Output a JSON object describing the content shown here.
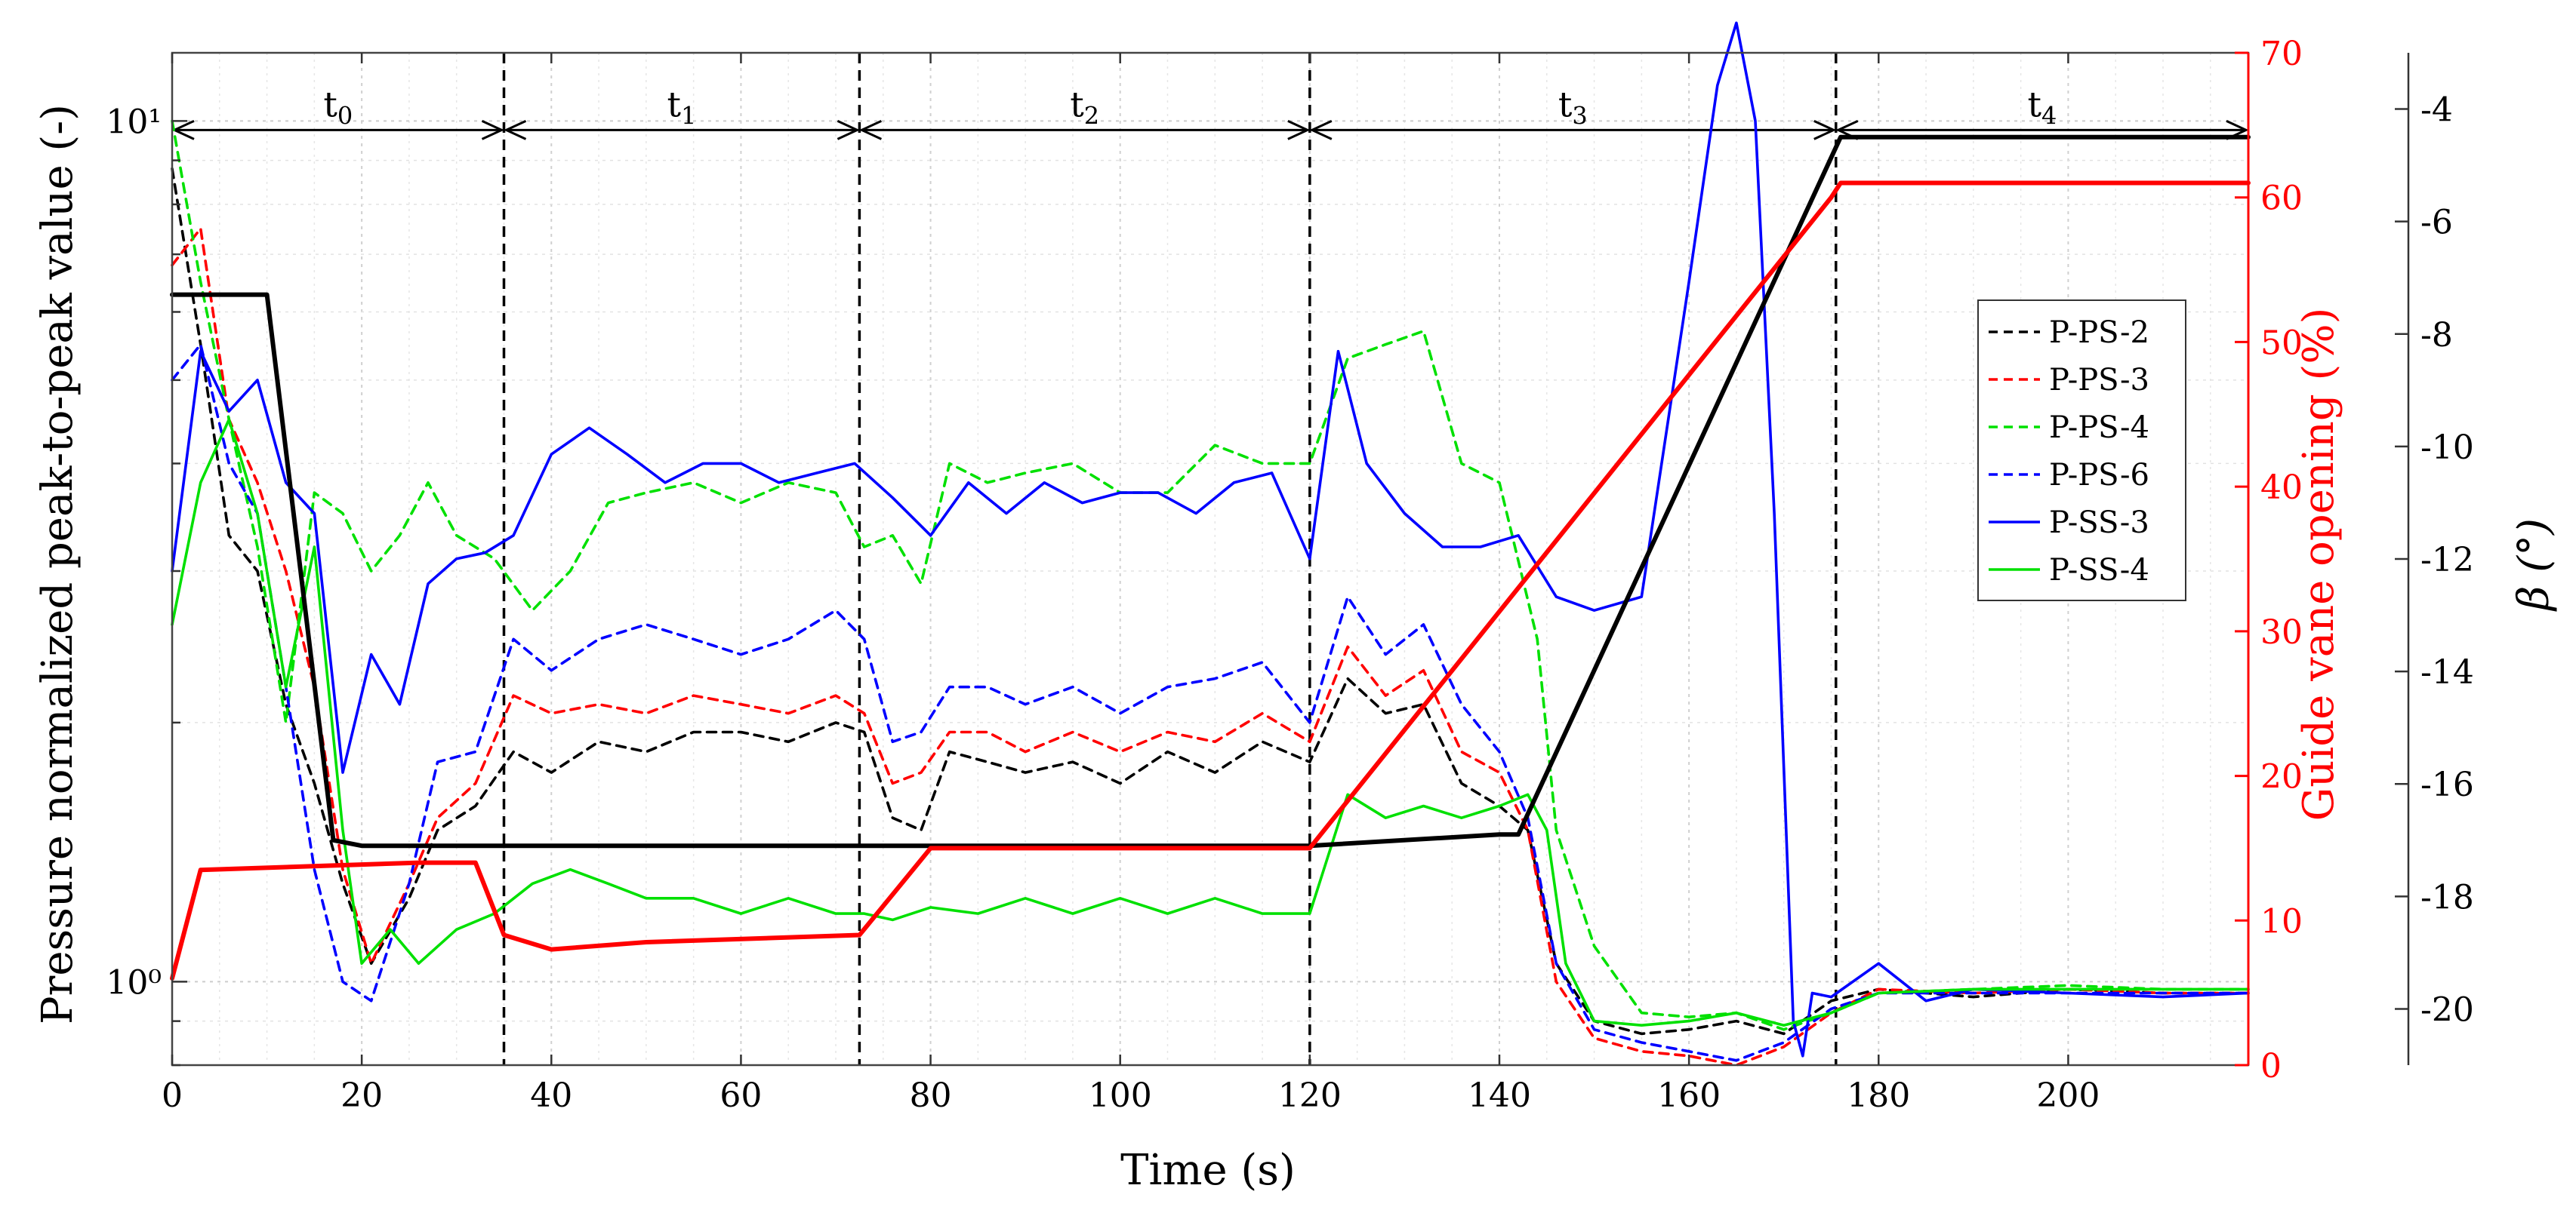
{
  "chart_data": {
    "type": "line",
    "xlabel": "Time (s)",
    "ylabel_left": "Pressure normalized peak-to-peak value (-)",
    "ylabel_right1": "Guide vane opening (%)",
    "ylabel_right2": "β (°)",
    "xlim": [
      0,
      219
    ],
    "ylim_left": [
      0.8,
      12
    ],
    "ylim_right1": [
      0,
      70
    ],
    "ylim_right2": [
      -21,
      -3
    ],
    "yscale_left": "log",
    "grid": true,
    "legend_position": "right",
    "x_ticks": [
      0,
      20,
      40,
      60,
      80,
      100,
      120,
      140,
      160,
      180,
      200
    ],
    "x_tick_labels": [
      "0",
      "20",
      "40",
      "60",
      "80",
      "100",
      "120",
      "140",
      "160",
      "180",
      "200"
    ],
    "y_left_tick_labels": [
      "10⁰",
      "10¹"
    ],
    "y_right1_ticks": [
      0,
      10,
      20,
      30,
      40,
      50,
      60,
      70
    ],
    "y_right1_tick_labels": [
      "0",
      "10",
      "20",
      "30",
      "40",
      "50",
      "60",
      "70"
    ],
    "y_right2_ticks": [
      -20,
      -18,
      -16,
      -14,
      -12,
      -10,
      -8,
      -6,
      -4
    ],
    "y_right2_tick_labels": [
      "-20",
      "-18",
      "-16",
      "-14",
      "-12",
      "-10",
      "-8",
      "-6",
      "-4"
    ],
    "periods": [
      {
        "label": "t",
        "sub": "0",
        "start": 0,
        "end": 35
      },
      {
        "label": "t",
        "sub": "1",
        "start": 35,
        "end": 72.5
      },
      {
        "label": "t",
        "sub": "2",
        "start": 72.5,
        "end": 120
      },
      {
        "label": "t",
        "sub": "3",
        "start": 120,
        "end": 175.5
      },
      {
        "label": "t",
        "sub": "4",
        "start": 175.5,
        "end": 219
      }
    ],
    "vertical_markers": [
      35,
      72.5,
      120,
      175.5
    ],
    "series": [
      {
        "name": "P-PS-2",
        "axis": "left",
        "color": "#000000",
        "dash": true,
        "x": [
          0,
          3,
          6,
          9,
          12,
          15,
          18,
          21,
          25,
          28,
          32,
          36,
          40,
          45,
          50,
          55,
          60,
          65,
          70,
          73,
          76,
          79,
          82,
          86,
          90,
          95,
          100,
          105,
          110,
          115,
          120,
          124,
          128,
          132,
          136,
          140,
          143,
          146,
          150,
          155,
          160,
          165,
          170,
          175,
          180,
          190,
          200,
          210,
          219
        ],
        "y": [
          8.8,
          5.5,
          3.3,
          3.0,
          2.1,
          1.7,
          1.3,
          1.05,
          1.25,
          1.5,
          1.6,
          1.85,
          1.75,
          1.9,
          1.85,
          1.95,
          1.95,
          1.9,
          2.0,
          1.95,
          1.55,
          1.5,
          1.85,
          1.8,
          1.75,
          1.8,
          1.7,
          1.85,
          1.75,
          1.9,
          1.8,
          2.25,
          2.05,
          2.1,
          1.7,
          1.6,
          1.5,
          1.05,
          0.9,
          0.87,
          0.88,
          0.9,
          0.87,
          0.95,
          0.98,
          0.96,
          0.98,
          0.97,
          0.97
        ]
      },
      {
        "name": "P-PS-3",
        "axis": "left",
        "color": "#ff0000",
        "dash": true,
        "x": [
          0,
          3,
          6,
          9,
          12,
          15,
          18,
          21,
          25,
          28,
          32,
          36,
          40,
          45,
          50,
          55,
          60,
          65,
          70,
          73,
          76,
          79,
          82,
          86,
          90,
          95,
          100,
          105,
          110,
          115,
          120,
          124,
          128,
          132,
          136,
          140,
          143,
          146,
          150,
          155,
          160,
          165,
          170,
          175,
          180,
          190,
          200,
          210,
          219
        ],
        "y": [
          6.8,
          7.5,
          4.5,
          3.8,
          3.0,
          2.2,
          1.35,
          1.05,
          1.3,
          1.55,
          1.7,
          2.15,
          2.05,
          2.1,
          2.05,
          2.15,
          2.1,
          2.05,
          2.15,
          2.05,
          1.7,
          1.75,
          1.95,
          1.95,
          1.85,
          1.95,
          1.85,
          1.95,
          1.9,
          2.05,
          1.9,
          2.45,
          2.15,
          2.3,
          1.85,
          1.75,
          1.5,
          1.0,
          0.86,
          0.83,
          0.82,
          0.8,
          0.84,
          0.92,
          0.98,
          0.97,
          0.98,
          0.97,
          0.97
        ]
      },
      {
        "name": "P-PS-4",
        "axis": "left",
        "color": "#00e000",
        "dash": true,
        "x": [
          0,
          3,
          6,
          9,
          12,
          15,
          18,
          21,
          24,
          27,
          30,
          34,
          38,
          42,
          46,
          50,
          55,
          60,
          65,
          70,
          73,
          76,
          79,
          82,
          86,
          90,
          95,
          100,
          105,
          110,
          115,
          120,
          124,
          128,
          132,
          136,
          140,
          144,
          146,
          150,
          155,
          160,
          165,
          170,
          175,
          180,
          190,
          200,
          210,
          219
        ],
        "y": [
          10.0,
          6.5,
          4.5,
          3.2,
          2.0,
          3.7,
          3.5,
          3.0,
          3.3,
          3.8,
          3.3,
          3.1,
          2.7,
          3.0,
          3.6,
          3.7,
          3.8,
          3.6,
          3.8,
          3.7,
          3.2,
          3.3,
          2.9,
          4.0,
          3.8,
          3.9,
          4.0,
          3.7,
          3.7,
          4.2,
          4.0,
          4.0,
          5.3,
          5.5,
          5.7,
          4.0,
          3.8,
          2.5,
          1.5,
          1.1,
          0.92,
          0.91,
          0.92,
          0.88,
          0.92,
          0.97,
          0.98,
          0.99,
          0.98,
          0.98
        ]
      },
      {
        "name": "P-PS-6",
        "axis": "left",
        "color": "#0000ff",
        "dash": true,
        "x": [
          0,
          3,
          6,
          9,
          12,
          15,
          18,
          21,
          25,
          28,
          32,
          36,
          40,
          45,
          50,
          55,
          60,
          65,
          70,
          73,
          76,
          79,
          82,
          86,
          90,
          95,
          100,
          105,
          110,
          115,
          120,
          124,
          128,
          132,
          136,
          140,
          143,
          146,
          150,
          155,
          160,
          165,
          170,
          175,
          180,
          190,
          200,
          210,
          219
        ],
        "y": [
          5.0,
          5.5,
          4.0,
          3.5,
          2.2,
          1.35,
          1.0,
          0.95,
          1.3,
          1.8,
          1.85,
          2.5,
          2.3,
          2.5,
          2.6,
          2.5,
          2.4,
          2.5,
          2.7,
          2.5,
          1.9,
          1.95,
          2.2,
          2.2,
          2.1,
          2.2,
          2.05,
          2.2,
          2.25,
          2.35,
          2.0,
          2.8,
          2.4,
          2.6,
          2.1,
          1.85,
          1.55,
          1.05,
          0.88,
          0.85,
          0.83,
          0.81,
          0.85,
          0.93,
          0.97,
          0.97,
          0.97,
          0.97,
          0.97
        ]
      },
      {
        "name": "P-SS-3",
        "axis": "left",
        "color": "#0000ff",
        "dash": false,
        "x": [
          0,
          3,
          6,
          9,
          12,
          15,
          18,
          21,
          24,
          27,
          30,
          33,
          36,
          40,
          44,
          48,
          52,
          56,
          60,
          64,
          68,
          72,
          76,
          80,
          84,
          88,
          92,
          96,
          100,
          104,
          108,
          112,
          116,
          120,
          123,
          126,
          130,
          134,
          138,
          142,
          146,
          150,
          155,
          160,
          163,
          165,
          167,
          169,
          171,
          172,
          173,
          175,
          180,
          185,
          190,
          200,
          210,
          219
        ],
        "y": [
          3.0,
          5.4,
          4.6,
          5.0,
          3.8,
          3.5,
          1.75,
          2.4,
          2.1,
          2.9,
          3.1,
          3.15,
          3.3,
          4.1,
          4.4,
          4.1,
          3.8,
          4.0,
          4.0,
          3.8,
          3.9,
          4.0,
          3.65,
          3.3,
          3.8,
          3.5,
          3.8,
          3.6,
          3.7,
          3.7,
          3.5,
          3.8,
          3.9,
          3.1,
          5.4,
          4.0,
          3.5,
          3.2,
          3.2,
          3.3,
          2.8,
          2.7,
          2.8,
          6.5,
          11.0,
          13.0,
          10.0,
          3.5,
          0.9,
          0.82,
          0.97,
          0.96,
          1.05,
          0.95,
          0.98,
          0.97,
          0.96,
          0.97
        ]
      },
      {
        "name": "P-SS-4",
        "axis": "left",
        "color": "#00e000",
        "dash": false,
        "x": [
          0,
          3,
          6,
          9,
          12,
          15,
          18,
          20,
          23,
          26,
          30,
          34,
          38,
          42,
          46,
          50,
          55,
          60,
          65,
          70,
          73,
          76,
          80,
          85,
          90,
          95,
          100,
          105,
          110,
          115,
          120,
          124,
          128,
          132,
          136,
          140,
          143,
          145,
          147,
          150,
          155,
          160,
          165,
          170,
          175,
          180,
          190,
          200,
          210,
          219
        ],
        "y": [
          2.6,
          3.8,
          4.5,
          3.5,
          2.2,
          3.2,
          1.5,
          1.05,
          1.15,
          1.05,
          1.15,
          1.2,
          1.3,
          1.35,
          1.3,
          1.25,
          1.25,
          1.2,
          1.25,
          1.2,
          1.2,
          1.18,
          1.22,
          1.2,
          1.25,
          1.2,
          1.25,
          1.2,
          1.25,
          1.2,
          1.2,
          1.65,
          1.55,
          1.6,
          1.55,
          1.6,
          1.65,
          1.5,
          1.05,
          0.9,
          0.89,
          0.9,
          0.92,
          0.89,
          0.92,
          0.97,
          0.98,
          0.98,
          0.98,
          0.98
        ]
      },
      {
        "name": "",
        "axis": "right2",
        "color": "#000000",
        "dash": false,
        "thick": true,
        "x": [
          0,
          10,
          17,
          20,
          120,
          140,
          142,
          176,
          219
        ],
        "y": [
          -7.3,
          -7.3,
          -17.0,
          -17.1,
          -17.1,
          -16.9,
          -16.9,
          -4.5,
          -4.5
        ]
      },
      {
        "name": "",
        "axis": "right1",
        "color": "#ff0000",
        "dash": false,
        "thick": true,
        "x": [
          0,
          3,
          26,
          32,
          35,
          40,
          50,
          72.5,
          80,
          120,
          175,
          176,
          219
        ],
        "y": [
          6,
          13.5,
          14,
          14,
          9,
          8,
          8.5,
          9,
          15,
          15,
          60,
          61,
          61
        ]
      }
    ]
  }
}
